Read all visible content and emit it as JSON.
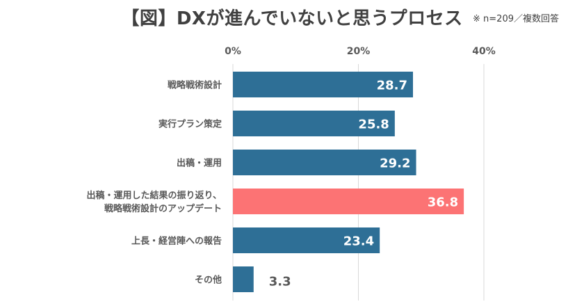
{
  "title": "【図】DXが進んでいないと思うプロセス",
  "note": "※ n=209／複数回答",
  "colors": {
    "bar": "#2e6f96",
    "highlight": "#fc7374",
    "grid": "#d9d9d9",
    "text": "#595959"
  },
  "chart_data": {
    "type": "bar",
    "orientation": "horizontal",
    "categories": [
      [
        "戦略戦術設計"
      ],
      [
        "実行プラン策定"
      ],
      [
        "出稿・運用"
      ],
      [
        "出稿・運用した結果の振り返り、",
        "戦略戦術設計のアップデート"
      ],
      [
        "上長・経営陣への報告"
      ],
      [
        "その他"
      ]
    ],
    "values": [
      28.7,
      25.8,
      29.2,
      36.8,
      23.4,
      3.3
    ],
    "highlight_index": 3,
    "xlim": [
      0,
      40
    ],
    "ticks": [
      0,
      20,
      40
    ],
    "tick_labels": [
      "0%",
      "20%",
      "40%"
    ],
    "grid": true,
    "xlabel": "",
    "ylabel": ""
  }
}
